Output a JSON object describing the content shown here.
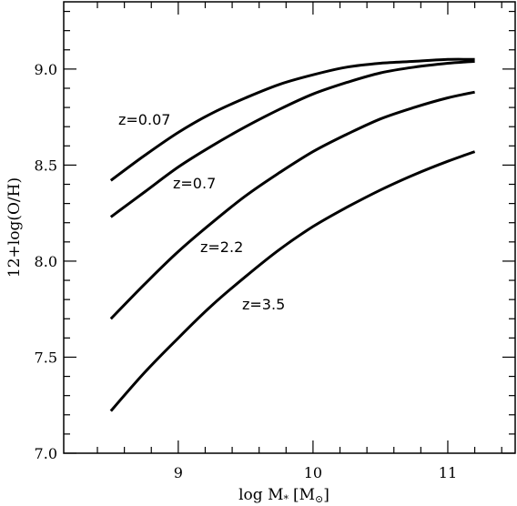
{
  "chart_data": {
    "type": "line",
    "xlabel_main": "log M",
    "xlabel_sub": "*",
    "xlabel_unit_open": "[M",
    "xlabel_unit_sub": "⊙",
    "xlabel_unit_close": "]",
    "ylabel": "12+log(O/H)",
    "xlim": [
      8.15,
      11.5
    ],
    "ylim": [
      7.0,
      9.35
    ],
    "xticks_major": [
      9,
      10,
      11
    ],
    "xtick_labels": [
      "9",
      "10",
      "11"
    ],
    "yticks_major": [
      7.0,
      7.5,
      8.0,
      8.5,
      9.0
    ],
    "ytick_labels": [
      "7.0",
      "7.5",
      "8.0",
      "8.5",
      "9.0"
    ],
    "series": [
      {
        "name": "z=0.07",
        "x": [
          8.5,
          8.75,
          9.0,
          9.25,
          9.5,
          9.75,
          10.0,
          10.25,
          10.5,
          10.75,
          11.0,
          11.2
        ],
        "values": [
          8.42,
          8.55,
          8.67,
          8.77,
          8.85,
          8.92,
          8.97,
          9.01,
          9.03,
          9.04,
          9.05,
          9.05
        ]
      },
      {
        "name": "z=0.7",
        "x": [
          8.5,
          8.75,
          9.0,
          9.25,
          9.5,
          9.75,
          10.0,
          10.25,
          10.5,
          10.75,
          11.0,
          11.2
        ],
        "values": [
          8.23,
          8.36,
          8.49,
          8.6,
          8.7,
          8.79,
          8.87,
          8.93,
          8.98,
          9.01,
          9.03,
          9.04
        ]
      },
      {
        "name": "z=2.2",
        "x": [
          8.5,
          8.75,
          9.0,
          9.25,
          9.5,
          9.75,
          10.0,
          10.25,
          10.5,
          10.75,
          11.0,
          11.2
        ],
        "values": [
          7.7,
          7.88,
          8.05,
          8.2,
          8.34,
          8.46,
          8.57,
          8.66,
          8.74,
          8.8,
          8.85,
          8.88
        ]
      },
      {
        "name": "z=3.5",
        "x": [
          8.5,
          8.75,
          9.0,
          9.25,
          9.5,
          9.75,
          10.0,
          10.25,
          10.5,
          10.75,
          11.0,
          11.2
        ],
        "values": [
          7.22,
          7.42,
          7.6,
          7.77,
          7.92,
          8.06,
          8.18,
          8.28,
          8.37,
          8.45,
          8.52,
          8.57
        ]
      }
    ]
  }
}
